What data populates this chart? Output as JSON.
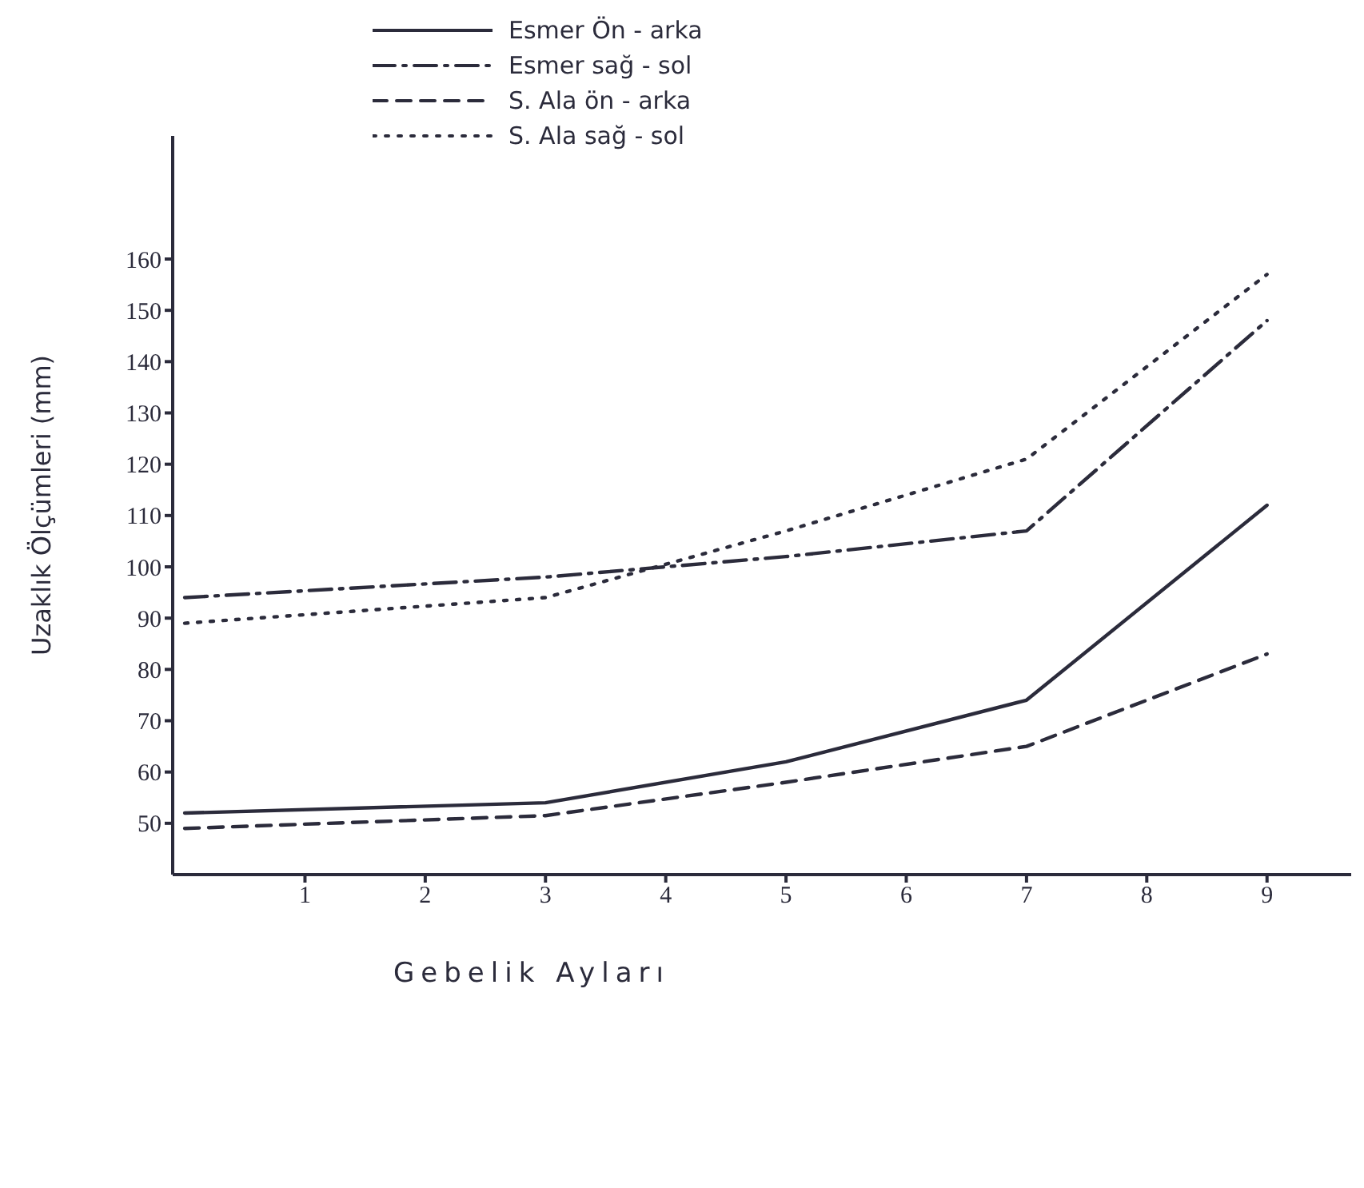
{
  "chart_data": {
    "type": "line",
    "xlabel": "Gebelik Ayları",
    "ylabel": "Uzaklık Ölçümleri (mm)",
    "xlim": [
      -0.1,
      9.7
    ],
    "ylim": [
      40,
      184
    ],
    "xticks": [
      1,
      2,
      3,
      4,
      5,
      6,
      7,
      8,
      9
    ],
    "yticks": [
      50,
      60,
      70,
      80,
      90,
      100,
      110,
      120,
      130,
      140,
      150,
      160
    ],
    "grid": false,
    "legend": "top",
    "marker": "none",
    "series": [
      {
        "name": "Esmer Ön - arka",
        "color": "#2b2b3b",
        "line_style": "solid",
        "x": [
          0,
          3,
          5,
          7,
          9
        ],
        "values": [
          52,
          54,
          62,
          74,
          112
        ]
      },
      {
        "name": "Esmer sağ - sol",
        "color": "#2b2b3b",
        "line_style": "dashdot",
        "x": [
          0,
          3,
          5,
          7,
          9
        ],
        "values": [
          94,
          98,
          102,
          107,
          148
        ]
      },
      {
        "name": "S. Ala ön - arka",
        "color": "#2b2b3b",
        "line_style": "dashed",
        "x": [
          0,
          3,
          5,
          7,
          9
        ],
        "values": [
          49,
          51.5,
          58,
          65,
          83
        ]
      },
      {
        "name": "S. Ala sağ - sol",
        "color": "#2b2b3b",
        "line_style": "dotted",
        "x": [
          0,
          3,
          5,
          6,
          7,
          9
        ],
        "values": [
          89,
          94,
          107,
          114,
          121,
          157
        ]
      }
    ]
  }
}
